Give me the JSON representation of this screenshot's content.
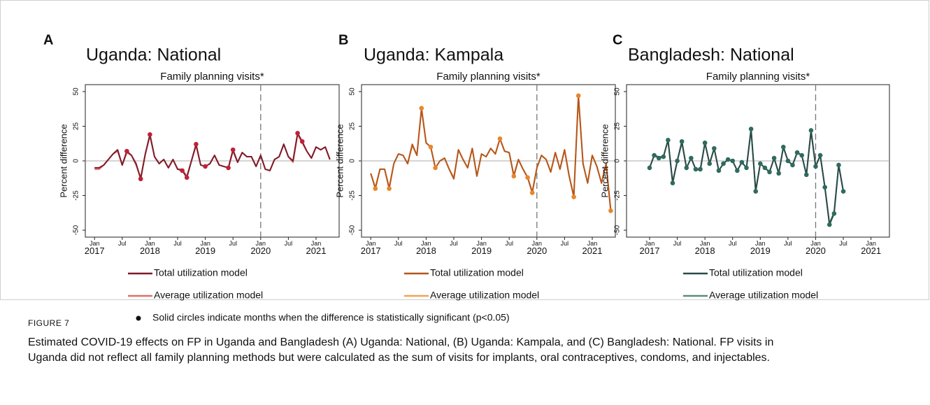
{
  "chart_data": [
    {
      "type": "line",
      "panel": "A",
      "title": "Uganda: National",
      "subtitle": "Family planning visits*",
      "y_label": "Percent difference",
      "x": [
        "2017-01",
        "2017-02",
        "2017-03",
        "2017-04",
        "2017-05",
        "2017-06",
        "2017-07",
        "2017-08",
        "2017-09",
        "2017-10",
        "2017-11",
        "2017-12",
        "2018-01",
        "2018-02",
        "2018-03",
        "2018-04",
        "2018-05",
        "2018-06",
        "2018-07",
        "2018-08",
        "2018-09",
        "2018-10",
        "2018-11",
        "2018-12",
        "2019-01",
        "2019-02",
        "2019-03",
        "2019-04",
        "2019-05",
        "2019-06",
        "2019-07",
        "2019-08",
        "2019-09",
        "2019-10",
        "2019-11",
        "2019-12",
        "2020-01",
        "2020-02",
        "2020-03",
        "2020-04",
        "2020-05",
        "2020-06",
        "2020-07",
        "2020-08",
        "2020-09",
        "2020-10",
        "2020-11",
        "2020-12",
        "2021-01",
        "2021-02",
        "2021-03",
        "2021-04"
      ],
      "series": [
        {
          "name": "Total utilization model",
          "color": "#7e1b2a",
          "values": [
            -5,
            -5,
            -3,
            1,
            5,
            8,
            -3,
            7,
            4,
            -2,
            -13,
            5,
            19,
            3,
            -2,
            1,
            -5,
            1,
            -6,
            -7,
            -12,
            0,
            12,
            -3,
            -4,
            -2,
            4,
            -3,
            -4,
            -5,
            8,
            -1,
            6,
            3,
            3,
            -4,
            4,
            -6,
            -7,
            1,
            3,
            12,
            3,
            0,
            20,
            14,
            7,
            2,
            10,
            8,
            10,
            1
          ]
        },
        {
          "name": "Average utilization model",
          "color": "#e0706a",
          "values": [
            -6,
            -6,
            -3,
            1,
            5,
            7,
            -3,
            6,
            4,
            -3,
            -12,
            5,
            18,
            3,
            -2,
            1,
            -5,
            1,
            -6,
            -6,
            -11,
            0,
            11,
            -3,
            -4,
            -2,
            4,
            -3,
            -4,
            -5,
            7,
            -1,
            6,
            3,
            3,
            -4,
            4,
            -6,
            -7,
            1,
            3,
            12,
            3,
            -1,
            19,
            13,
            7,
            2,
            10,
            8,
            10,
            1
          ]
        }
      ],
      "significant": [
        "2017-08",
        "2017-11",
        "2018-01",
        "2018-08",
        "2018-09",
        "2018-11",
        "2019-01",
        "2019-06",
        "2019-07",
        "2020-09",
        "2020-10"
      ],
      "marker_color": "#c0203a",
      "xlim": [
        "2016-11",
        "2021-06"
      ],
      "xticks": [
        {
          "value": "2017-01",
          "label": "Jan 2017"
        },
        {
          "value": "2017-07",
          "label": "Jul"
        },
        {
          "value": "2018-01",
          "label": "Jan 2018"
        },
        {
          "value": "2018-07",
          "label": "Jul"
        },
        {
          "value": "2019-01",
          "label": "Jan 2019"
        },
        {
          "value": "2019-07",
          "label": "Jul"
        },
        {
          "value": "2020-01",
          "label": "Jan 2020"
        },
        {
          "value": "2020-07",
          "label": "Jul"
        },
        {
          "value": "2021-01",
          "label": "Jan 2021"
        }
      ],
      "ylim": [
        -55,
        55
      ],
      "yticks": [
        -50,
        -25,
        0,
        25,
        50
      ],
      "hline": 0,
      "vline": "2020-01"
    },
    {
      "type": "line",
      "panel": "B",
      "title": "Uganda: Kampala",
      "subtitle": "Family planning visits*",
      "y_label": "Percent difference",
      "x": [
        "2017-01",
        "2017-02",
        "2017-03",
        "2017-04",
        "2017-05",
        "2017-06",
        "2017-07",
        "2017-08",
        "2017-09",
        "2017-10",
        "2017-11",
        "2017-12",
        "2018-01",
        "2018-02",
        "2018-03",
        "2018-04",
        "2018-05",
        "2018-06",
        "2018-07",
        "2018-08",
        "2018-09",
        "2018-10",
        "2018-11",
        "2018-12",
        "2019-01",
        "2019-02",
        "2019-03",
        "2019-04",
        "2019-05",
        "2019-06",
        "2019-07",
        "2019-08",
        "2019-09",
        "2019-10",
        "2019-11",
        "2019-12",
        "2020-01",
        "2020-02",
        "2020-03",
        "2020-04",
        "2020-05",
        "2020-06",
        "2020-07",
        "2020-08",
        "2020-09",
        "2020-10",
        "2020-11",
        "2020-12",
        "2021-01",
        "2021-02",
        "2021-03",
        "2021-04",
        "2021-05"
      ],
      "series": [
        {
          "name": "Total utilization model",
          "color": "#b4561c",
          "values": [
            -9,
            -20,
            -6,
            -6,
            -20,
            -2,
            5,
            4,
            -2,
            12,
            4,
            38,
            13,
            10,
            -5,
            0,
            2,
            -6,
            -13,
            8,
            1,
            -5,
            9,
            -11,
            5,
            3,
            9,
            5,
            16,
            7,
            6,
            -11,
            1,
            -6,
            -12,
            -23,
            -5,
            4,
            1,
            -8,
            6,
            -6,
            8,
            -11,
            -26,
            47,
            -2,
            -16,
            4,
            -4,
            -16,
            -2,
            -36
          ]
        },
        {
          "name": "Average utilization model",
          "color": "#f2a354",
          "values": [
            -9,
            -19,
            -6,
            -6,
            -19,
            -2,
            5,
            4,
            -2,
            11,
            4,
            37,
            13,
            10,
            -5,
            0,
            2,
            -6,
            -12,
            8,
            1,
            -5,
            9,
            -11,
            5,
            3,
            9,
            5,
            16,
            7,
            6,
            -10,
            1,
            -6,
            -12,
            -22,
            -5,
            4,
            1,
            -8,
            6,
            -6,
            8,
            -11,
            -25,
            46,
            -2,
            -16,
            4,
            -4,
            -16,
            -2,
            -35
          ]
        }
      ],
      "significant": [
        "2017-02",
        "2017-05",
        "2017-12",
        "2018-02",
        "2018-03",
        "2019-05",
        "2019-08",
        "2019-11",
        "2019-12",
        "2020-09",
        "2020-10",
        "2021-05"
      ],
      "marker_color": "#e8862c",
      "xlim": [
        "2016-11",
        "2021-06"
      ],
      "xticks": [
        {
          "value": "2017-01",
          "label": "Jan 2017"
        },
        {
          "value": "2017-07",
          "label": "Jul"
        },
        {
          "value": "2018-01",
          "label": "Jan 2018"
        },
        {
          "value": "2018-07",
          "label": "Jul"
        },
        {
          "value": "2019-01",
          "label": "Jan 2019"
        },
        {
          "value": "2019-07",
          "label": "Jul"
        },
        {
          "value": "2020-01",
          "label": "Jan 2020"
        },
        {
          "value": "2020-07",
          "label": "Jul"
        },
        {
          "value": "2021-01",
          "label": "Jan 2021"
        }
      ],
      "ylim": [
        -55,
        55
      ],
      "yticks": [
        -50,
        -25,
        0,
        25,
        50
      ],
      "hline": 0,
      "vline": "2020-01"
    },
    {
      "type": "line",
      "panel": "C",
      "title": "Bangladesh: National",
      "subtitle": "Family planning visits*",
      "y_label": "Percent difference",
      "x": [
        "2017-01",
        "2017-02",
        "2017-03",
        "2017-04",
        "2017-05",
        "2017-06",
        "2017-07",
        "2017-08",
        "2017-09",
        "2017-10",
        "2017-11",
        "2017-12",
        "2018-01",
        "2018-02",
        "2018-03",
        "2018-04",
        "2018-05",
        "2018-06",
        "2018-07",
        "2018-08",
        "2018-09",
        "2018-10",
        "2018-11",
        "2018-12",
        "2019-01",
        "2019-02",
        "2019-03",
        "2019-04",
        "2019-05",
        "2019-06",
        "2019-07",
        "2019-08",
        "2019-09",
        "2019-10",
        "2019-11",
        "2019-12",
        "2020-01",
        "2020-02",
        "2020-03",
        "2020-04",
        "2020-05",
        "2020-06",
        "2020-07"
      ],
      "series": [
        {
          "name": "Total utilization model",
          "color": "#2b4a48",
          "values": [
            -5,
            4,
            2,
            3,
            15,
            -16,
            0,
            14,
            -5,
            2,
            -6,
            -6,
            13,
            -2,
            9,
            -7,
            -2,
            1,
            0,
            -7,
            -1,
            -5,
            23,
            -22,
            -2,
            -5,
            -8,
            2,
            -9,
            10,
            0,
            -3,
            6,
            4,
            -10,
            22,
            -4,
            4,
            -19,
            -46,
            -38,
            -3,
            -22
          ]
        },
        {
          "name": "Average utilization model",
          "color": "#5f8a80",
          "values": [
            -5,
            4,
            3,
            3,
            15,
            -15,
            0,
            13,
            -5,
            2,
            -6,
            -7,
            13,
            -2,
            9,
            -7,
            -2,
            1,
            0,
            -7,
            -1,
            -5,
            22,
            -21,
            -2,
            -5,
            -8,
            2,
            -9,
            10,
            0,
            -3,
            6,
            4,
            -10,
            21,
            -4,
            4,
            -19,
            -45,
            -37,
            -3,
            -22
          ]
        }
      ],
      "significant": [
        "2017-01",
        "2017-02",
        "2017-03",
        "2017-04",
        "2017-05",
        "2017-06",
        "2017-07",
        "2017-08",
        "2017-09",
        "2017-10",
        "2017-11",
        "2017-12",
        "2018-01",
        "2018-02",
        "2018-03",
        "2018-04",
        "2018-05",
        "2018-06",
        "2018-07",
        "2018-08",
        "2018-09",
        "2018-10",
        "2018-11",
        "2018-12",
        "2019-01",
        "2019-02",
        "2019-03",
        "2019-04",
        "2019-05",
        "2019-06",
        "2019-07",
        "2019-08",
        "2019-09",
        "2019-10",
        "2019-11",
        "2019-12",
        "2020-01",
        "2020-02",
        "2020-03",
        "2020-04",
        "2020-05",
        "2020-06",
        "2020-07"
      ],
      "marker_color": "#2e6b5e",
      "xlim": [
        "2016-08",
        "2021-05"
      ],
      "xticks": [
        {
          "value": "2017-01",
          "label": "Jan 2017"
        },
        {
          "value": "2017-07",
          "label": "Jul"
        },
        {
          "value": "2018-01",
          "label": "Jan 2018"
        },
        {
          "value": "2018-07",
          "label": "Jul"
        },
        {
          "value": "2019-01",
          "label": "Jan 2019"
        },
        {
          "value": "2019-07",
          "label": "Jul"
        },
        {
          "value": "2020-01",
          "label": "Jan 2020"
        },
        {
          "value": "2020-07",
          "label": "Jul"
        },
        {
          "value": "2021-01",
          "label": "Jan 2021"
        }
      ],
      "ylim": [
        -55,
        55
      ],
      "yticks": [
        -50,
        -25,
        0,
        25,
        50
      ],
      "hline": 0,
      "vline": "2020-01"
    }
  ],
  "note": "Solid circles indicate months when the difference is statistically significant (p<0.05)",
  "figure_label": "FIGURE 7",
  "caption_lines": [
    "Estimated COVID-19 effects on FP in Uganda and Bangladesh (A) Uganda: National, (B) Uganda: Kampala, and (C) Bangladesh: National. FP visits in",
    "Uganda did not reflect all family planning methods but were calculated as the sum of visits for implants, oral contraceptives, condoms, and injectables."
  ]
}
